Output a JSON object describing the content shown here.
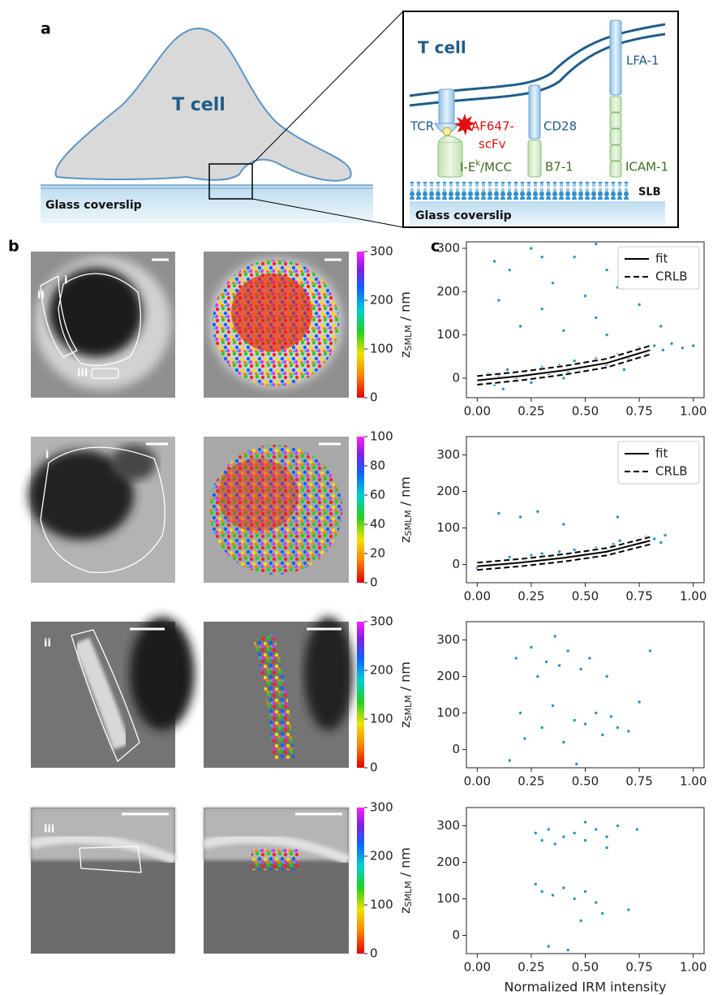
{
  "panel_labels": [
    "a",
    "b",
    "c"
  ],
  "panel_a": {
    "cell_label": "T cell",
    "coverslip_label": "Glass coverslip",
    "inset": {
      "cell_label": "T cell",
      "receptors": [
        "TCR",
        "CD28",
        "LFA-1"
      ],
      "probe": [
        "AF647-",
        "scFv"
      ],
      "ligand_mhc": {
        "base": "I-E",
        "sup": "k",
        "rest": "/MCC"
      },
      "ligands": [
        "B7-1",
        "ICAM-1"
      ],
      "bilayer_label": "SLB",
      "coverslip_label": "Glass coverslip"
    }
  },
  "panel_b": {
    "rows": [
      {
        "roi_labels": [
          "i",
          "ii",
          "iii"
        ],
        "colorbar": {
          "clim": [
            0,
            300
          ],
          "ticks": [
            0,
            100,
            200,
            300
          ]
        }
      },
      {
        "roi_labels": [
          "i"
        ],
        "colorbar": {
          "clim": [
            0,
            100
          ],
          "ticks": [
            0,
            20,
            40,
            60,
            80,
            100
          ]
        }
      },
      {
        "roi_labels": [
          "ii"
        ],
        "colorbar": {
          "clim": [
            0,
            300
          ],
          "ticks": [
            0,
            100,
            200,
            300
          ]
        }
      },
      {
        "roi_labels": [
          "iii"
        ],
        "colorbar": {
          "clim": [
            0,
            300
          ],
          "ticks": [
            0,
            100,
            200,
            300
          ]
        }
      }
    ],
    "colorbar_label": {
      "symbol": "z",
      "sub": "SMLM",
      "unit": "/ nm"
    }
  },
  "chart_data": [
    {
      "type": "scatter",
      "color": "#2e95c8",
      "x": [
        0.02,
        0.05,
        0.08,
        0.1,
        0.14,
        0.18,
        0.22,
        0.25,
        0.3,
        0.33,
        0.38,
        0.42,
        0.45,
        0.5,
        0.55,
        0.6,
        0.65,
        0.7,
        0.75,
        0.78,
        0.82,
        0.86,
        0.9,
        0.95,
        1.0,
        0.12,
        0.4,
        0.68,
        0.08,
        0.1,
        0.15,
        0.2,
        0.25,
        0.3,
        0.35,
        0.4,
        0.45,
        0.5,
        0.55,
        0.6,
        0.65,
        0.7,
        0.75,
        0.8,
        0.85,
        0.9,
        0.95,
        0.55,
        0.3,
        0.6
      ],
      "y": [
        -5,
        10,
        -15,
        5,
        20,
        0,
        15,
        -10,
        25,
        10,
        30,
        15,
        40,
        25,
        45,
        30,
        55,
        45,
        70,
        60,
        75,
        65,
        80,
        70,
        75,
        -25,
        0,
        20,
        270,
        180,
        250,
        120,
        300,
        160,
        220,
        110,
        280,
        190,
        140,
        250,
        210,
        300,
        170,
        260,
        120,
        230,
        290,
        310,
        280,
        100
      ],
      "xlim": [
        -0.05,
        1.05
      ],
      "ylim": [
        -45,
        315
      ],
      "xticks": [
        {
          "value": 0,
          "label": "0.00"
        },
        {
          "value": 0.25,
          "label": "0.25"
        },
        {
          "value": 0.5,
          "label": "0.50"
        },
        {
          "value": 0.75,
          "label": "0.75"
        },
        {
          "value": 1,
          "label": "1.00"
        }
      ],
      "yticks": [
        0,
        100,
        200,
        300
      ],
      "series": [
        {
          "name": "fit",
          "color": "#000000",
          "style": "solid",
          "x": [
            0,
            0.2,
            0.4,
            0.6,
            0.8
          ],
          "values": [
            -5,
            5,
            18,
            35,
            65
          ]
        },
        {
          "name": "CRLB",
          "color": "#000000",
          "style": "dashed",
          "x": [
            0,
            0.2,
            0.4,
            0.6,
            0.8
          ],
          "upper": [
            5,
            15,
            28,
            45,
            75
          ],
          "lower": [
            -15,
            -5,
            8,
            25,
            55
          ]
        }
      ],
      "legend": "upper right"
    },
    {
      "type": "scatter",
      "color": "#2e95c8",
      "x": [
        0.0,
        0.03,
        0.06,
        0.1,
        0.12,
        0.15,
        0.18,
        0.22,
        0.25,
        0.28,
        0.3,
        0.34,
        0.38,
        0.42,
        0.45,
        0.5,
        0.55,
        0.6,
        0.63,
        0.66,
        0.7,
        0.74,
        0.78,
        0.82,
        0.85,
        0.87,
        0.1,
        0.2,
        0.28,
        0.4,
        0.65
      ],
      "y": [
        -10,
        5,
        -5,
        10,
        0,
        20,
        5,
        15,
        25,
        10,
        30,
        20,
        35,
        25,
        40,
        30,
        45,
        40,
        55,
        65,
        50,
        60,
        75,
        70,
        60,
        80,
        140,
        130,
        145,
        110,
        130
      ],
      "xlim": [
        -0.05,
        1.05
      ],
      "ylim": [
        -50,
        350
      ],
      "xticks": [
        {
          "value": 0,
          "label": "0.00"
        },
        {
          "value": 0.25,
          "label": "0.25"
        },
        {
          "value": 0.5,
          "label": "0.50"
        },
        {
          "value": 0.75,
          "label": "0.75"
        },
        {
          "value": 1,
          "label": "1.00"
        }
      ],
      "yticks": [
        0,
        100,
        200,
        300
      ],
      "series": [
        {
          "name": "fit",
          "color": "#000000",
          "style": "solid",
          "x": [
            0,
            0.2,
            0.4,
            0.6,
            0.8
          ],
          "values": [
            -5,
            5,
            18,
            35,
            65
          ]
        },
        {
          "name": "CRLB",
          "color": "#000000",
          "style": "dashed",
          "x": [
            0,
            0.2,
            0.4,
            0.6,
            0.8
          ],
          "upper": [
            5,
            15,
            28,
            45,
            75
          ],
          "lower": [
            -15,
            -5,
            8,
            25,
            55
          ]
        }
      ],
      "legend": "upper right"
    },
    {
      "type": "scatter",
      "color": "#2e95c8",
      "x": [
        0.18,
        0.2,
        0.22,
        0.25,
        0.28,
        0.3,
        0.32,
        0.35,
        0.38,
        0.4,
        0.42,
        0.45,
        0.48,
        0.5,
        0.52,
        0.55,
        0.58,
        0.6,
        0.62,
        0.65,
        0.7,
        0.75,
        0.8,
        0.15,
        0.36,
        0.46
      ],
      "y": [
        250,
        100,
        30,
        280,
        200,
        60,
        240,
        120,
        230,
        20,
        270,
        80,
        220,
        70,
        250,
        100,
        40,
        200,
        90,
        60,
        50,
        130,
        270,
        -30,
        310,
        -40
      ],
      "xlim": [
        -0.05,
        1.05
      ],
      "ylim": [
        -50,
        350
      ],
      "xticks": [
        {
          "value": 0,
          "label": "0.00"
        },
        {
          "value": 0.25,
          "label": "0.25"
        },
        {
          "value": 0.5,
          "label": "0.50"
        },
        {
          "value": 0.75,
          "label": "0.75"
        },
        {
          "value": 1,
          "label": "1.00"
        }
      ],
      "yticks": [
        0,
        100,
        200,
        300
      ]
    },
    {
      "type": "scatter",
      "color": "#2e95c8",
      "x": [
        0.27,
        0.3,
        0.33,
        0.36,
        0.4,
        0.45,
        0.5,
        0.55,
        0.6,
        0.65,
        0.74,
        0.27,
        0.3,
        0.35,
        0.4,
        0.45,
        0.5,
        0.55,
        0.58,
        0.48,
        0.33,
        0.42,
        0.7,
        0.5,
        0.6
      ],
      "y": [
        280,
        260,
        290,
        250,
        270,
        280,
        260,
        290,
        270,
        300,
        290,
        140,
        120,
        110,
        130,
        100,
        120,
        90,
        60,
        40,
        -30,
        -40,
        70,
        310,
        240
      ],
      "xlim": [
        -0.05,
        1.05
      ],
      "ylim": [
        -50,
        350
      ],
      "xticks": [
        {
          "value": 0,
          "label": "0.00"
        },
        {
          "value": 0.25,
          "label": "0.25"
        },
        {
          "value": 0.5,
          "label": "0.50"
        },
        {
          "value": 0.75,
          "label": "0.75"
        },
        {
          "value": 1,
          "label": "1.00"
        }
      ],
      "yticks": [
        0,
        100,
        200,
        300
      ],
      "xlabel": "Normalized IRM intensity"
    }
  ]
}
